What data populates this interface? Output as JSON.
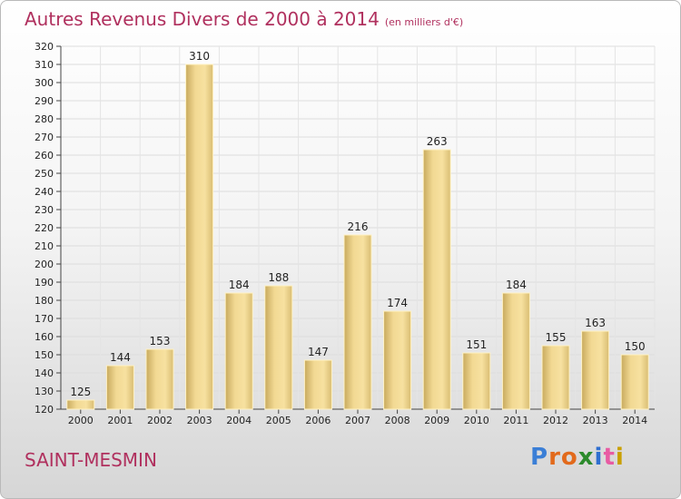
{
  "title": "Autres Revenus Divers de 2000 à 2014",
  "unit": "(en milliers d'€)",
  "city": "SAINT-MESMIN",
  "logo": {
    "letters": [
      {
        "ch": "P",
        "color": "#3b7fd6"
      },
      {
        "ch": "r",
        "color": "#e26a1c"
      },
      {
        "ch": "o",
        "color": "#e26a1c"
      },
      {
        "ch": "x",
        "color": "#2c8a2c"
      },
      {
        "ch": "i",
        "color": "#2f6fd0"
      },
      {
        "ch": "t",
        "color": "#e85ba3"
      },
      {
        "ch": "i",
        "color": "#c9a000"
      }
    ]
  },
  "colors": {
    "title": "#b0305e",
    "bar_light": "#f7e1a0",
    "bar_dark": "#c8aa5e",
    "grid": "#dddddd"
  },
  "chart_data": {
    "type": "bar",
    "categories": [
      "2000",
      "2001",
      "2002",
      "2003",
      "2004",
      "2005",
      "2006",
      "2007",
      "2008",
      "2009",
      "2010",
      "2011",
      "2012",
      "2013",
      "2014"
    ],
    "values": [
      125,
      144,
      153,
      310,
      184,
      188,
      147,
      216,
      174,
      263,
      151,
      184,
      155,
      163,
      150
    ],
    "ylim": [
      120,
      320
    ],
    "ystep": 10,
    "grid": true,
    "legend": "none"
  }
}
